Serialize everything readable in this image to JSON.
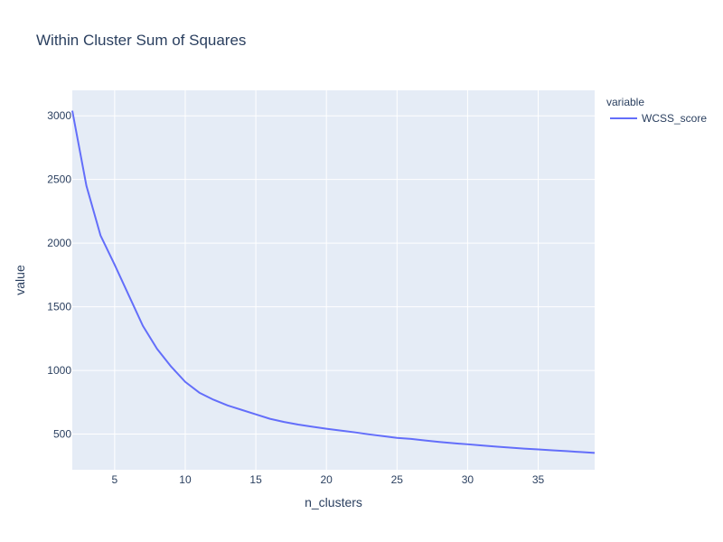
{
  "chart_data": {
    "type": "line",
    "title": "Within Cluster Sum of Squares",
    "xlabel": "n_clusters",
    "ylabel": "value",
    "xlim": [
      2,
      39
    ],
    "ylim": [
      220,
      3200
    ],
    "x_ticks": [
      5,
      10,
      15,
      20,
      25,
      30,
      35
    ],
    "y_ticks": [
      500,
      1000,
      1500,
      2000,
      2500,
      3000
    ],
    "grid": true,
    "legend": {
      "title": "variable",
      "placement": "top-right-outside"
    },
    "series": [
      {
        "name": "WCSS_score",
        "color": "#636efa",
        "x": [
          2,
          3,
          4,
          5,
          6,
          7,
          8,
          9,
          10,
          11,
          12,
          13,
          14,
          15,
          16,
          17,
          18,
          19,
          20,
          21,
          22,
          23,
          24,
          25,
          26,
          27,
          28,
          29,
          30,
          31,
          32,
          33,
          34,
          35,
          36,
          37,
          38,
          39
        ],
        "values": [
          3040,
          2450,
          2060,
          1830,
          1590,
          1350,
          1170,
          1030,
          910,
          825,
          770,
          725,
          690,
          655,
          620,
          595,
          575,
          558,
          542,
          528,
          514,
          498,
          484,
          470,
          462,
          450,
          438,
          428,
          420,
          411,
          402,
          394,
          386,
          380,
          373,
          366,
          359,
          352
        ]
      }
    ]
  }
}
